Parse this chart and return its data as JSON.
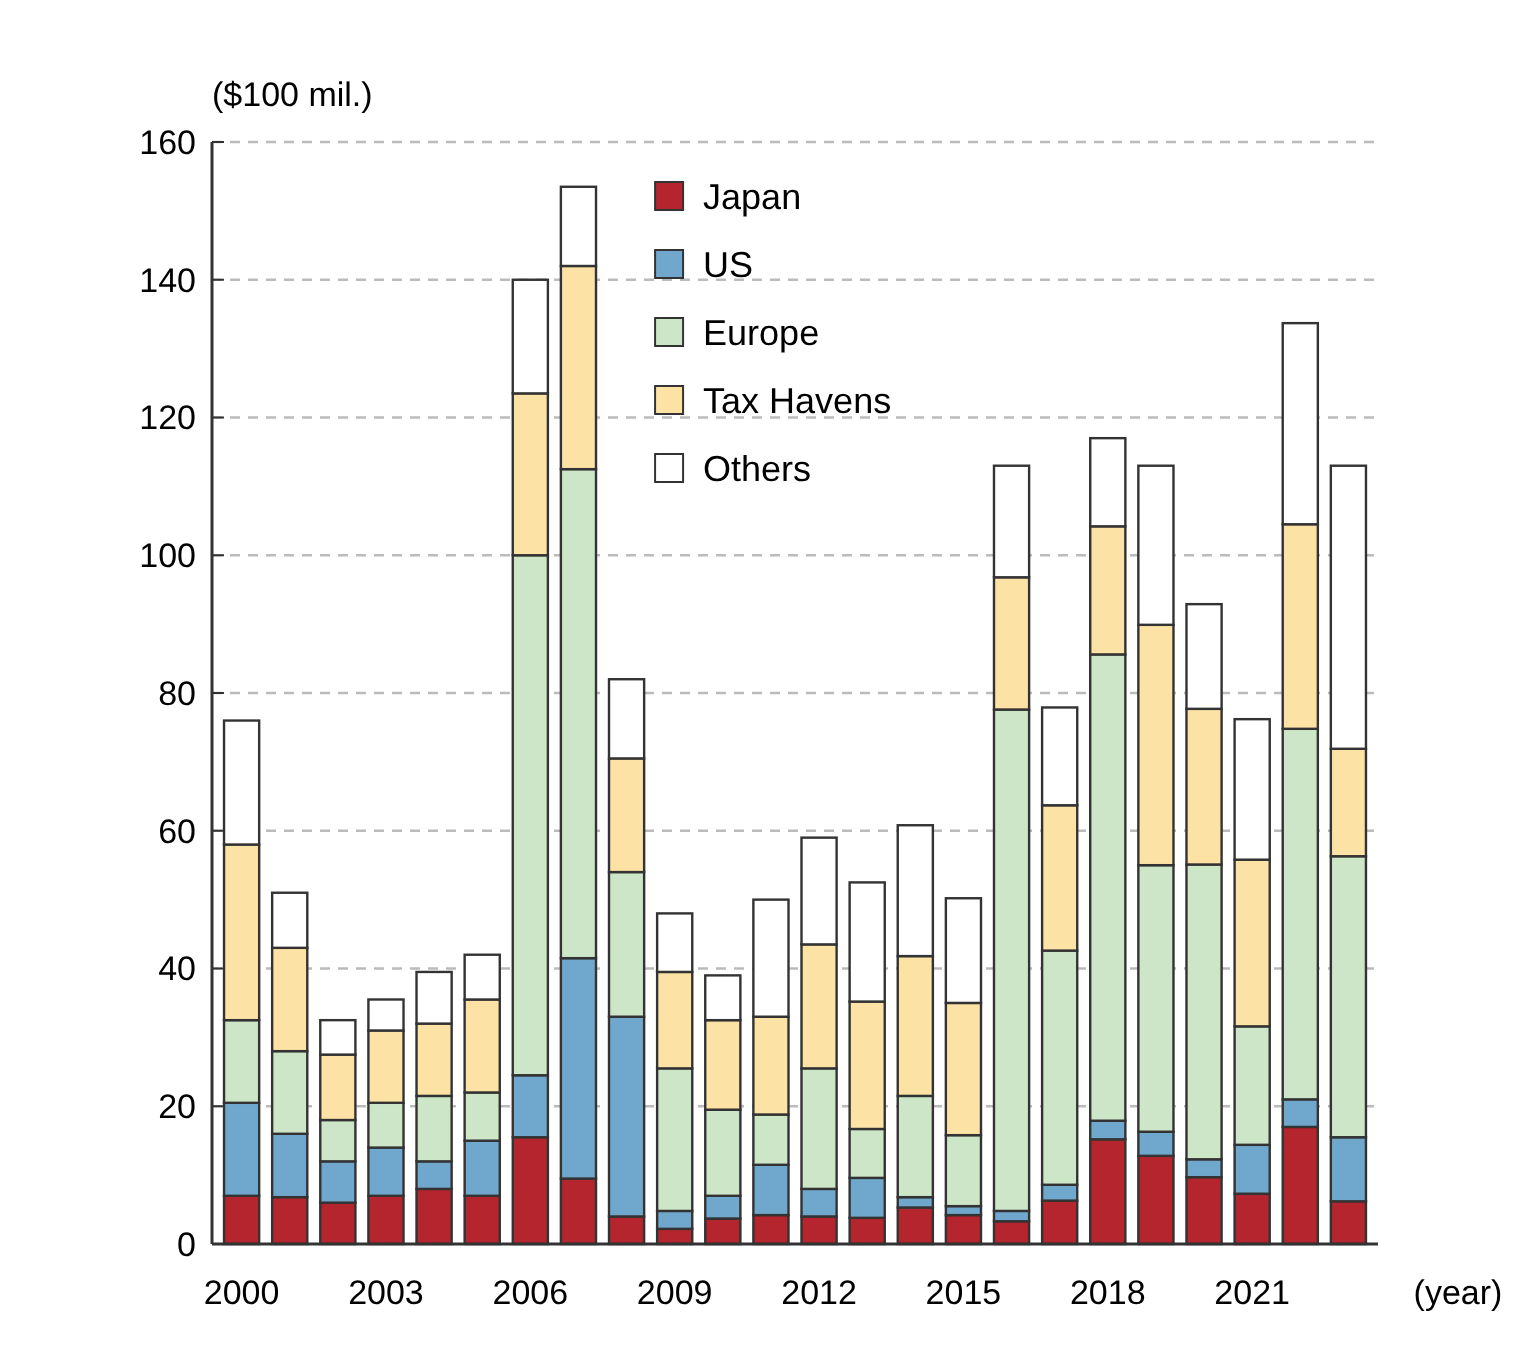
{
  "chart_data": {
    "type": "bar",
    "stacked": true,
    "ylabel": "($100 mil.)",
    "xlabel": "(year)",
    "categories": [
      "2000",
      null,
      null,
      "2003",
      null,
      null,
      "2006",
      null,
      null,
      "2009",
      null,
      null,
      "2012",
      null,
      null,
      "2015",
      null,
      null,
      "2018",
      null,
      null,
      "2021",
      null,
      null
    ],
    "series": [
      {
        "name": "Japan",
        "color": "#b5252e",
        "values": [
          7,
          6.8,
          6,
          7,
          8,
          7,
          15.5,
          9.5,
          4,
          2.2,
          3.7,
          4.2,
          4,
          3.8,
          5.3,
          4.2,
          3.3,
          6.3,
          15.2,
          12.8,
          9.7,
          7.3,
          17,
          6.2
        ]
      },
      {
        "name": "US",
        "color": "#6fa8cc",
        "values": [
          13.5,
          9.2,
          6,
          7,
          4,
          8,
          9,
          32,
          29,
          2.6,
          3.3,
          7.3,
          4,
          5.8,
          1.5,
          1.3,
          1.5,
          2.3,
          2.7,
          3.5,
          2.6,
          7.1,
          4,
          9.3
        ]
      },
      {
        "name": "Europe",
        "color": "#cde6c7",
        "values": [
          12,
          12,
          6,
          6.5,
          9.5,
          7,
          75.5,
          71,
          21,
          20.7,
          12.5,
          7.3,
          17.5,
          7.1,
          14.7,
          10.3,
          72.8,
          34,
          67.7,
          38.7,
          42.8,
          17.2,
          53.8,
          40.8
        ]
      },
      {
        "name": "Tax Havens",
        "color": "#fde2a6",
        "values": [
          25.5,
          15,
          9.5,
          10.5,
          10.5,
          13.5,
          23.5,
          29.5,
          16.5,
          14,
          13,
          14.2,
          18,
          18.5,
          20.3,
          19.2,
          19.2,
          21.1,
          18.6,
          34.9,
          22.6,
          24.2,
          29.7,
          15.6
        ]
      },
      {
        "name": "Others",
        "color": "#ffffff",
        "values": [
          18,
          8,
          5,
          4.5,
          7.5,
          6.5,
          16.5,
          11.5,
          11.5,
          8.5,
          6.5,
          17,
          15.5,
          17.3,
          19,
          15.2,
          16.2,
          14.2,
          12.8,
          23.1,
          15.2,
          20.4,
          29.2,
          41.1
        ]
      }
    ],
    "ylim": [
      0,
      160
    ],
    "yticks": [
      0,
      20,
      40,
      60,
      80,
      100,
      120,
      140,
      160
    ],
    "grid": "y",
    "legend": "top"
  }
}
